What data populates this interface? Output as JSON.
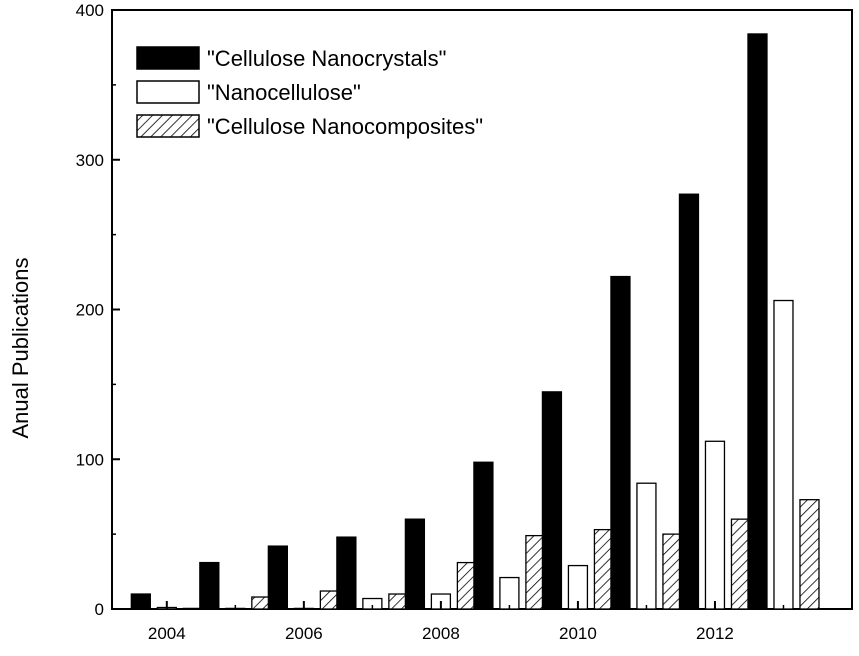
{
  "chart_data": {
    "type": "bar",
    "categories": [
      "2004",
      "2005",
      "2006",
      "2007",
      "2008",
      "2009",
      "2010",
      "2011",
      "2012",
      "2013"
    ],
    "series": [
      {
        "name": "\"Cellulose Nanocrystals\"",
        "fill": "solid",
        "color": "#000000",
        "values": [
          10,
          31,
          42,
          48,
          60,
          98,
          145,
          222,
          277,
          384
        ]
      },
      {
        "name": "\"Nanocellulose\"",
        "fill": "hollow",
        "color": "#ffffff",
        "values": [
          1,
          0,
          0,
          7,
          10,
          21,
          29,
          84,
          112,
          206
        ]
      },
      {
        "name": "\"Cellulose Nanocomposites\"",
        "fill": "hatched",
        "color": "#000000",
        "values": [
          0,
          8,
          12,
          10,
          31,
          49,
          53,
          50,
          60,
          73
        ]
      }
    ],
    "title": "",
    "xlabel": "",
    "ylabel": "Anual Publications",
    "xlim": [
      2003.2,
      2014.0
    ],
    "ylim": [
      0,
      400
    ],
    "xticks": [
      "2004",
      "2006",
      "2008",
      "2010",
      "2012"
    ],
    "yticks": [
      "0",
      "100",
      "200",
      "300",
      "400"
    ],
    "legend_position": "top-left",
    "grid": false
  }
}
